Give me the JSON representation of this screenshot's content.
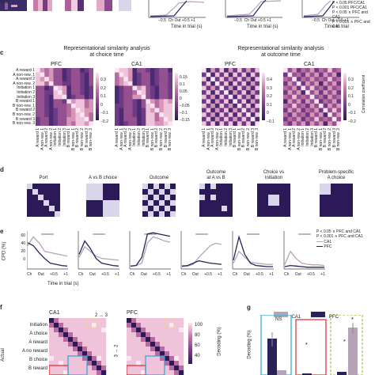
{
  "top": {
    "xlabel": "Time in trial",
    "xunit": "(s)",
    "ticks": [
      "−0.5",
      "Ch",
      "Out",
      "+0.5",
      "+1"
    ],
    "legend": [
      "P < 0.05 PFC/CA1",
      "P < 0.001 PFC/CA1",
      "P < 0.05 ∧ PFC and CA1",
      "P < 0.001 ∧ PFC and CA1"
    ]
  },
  "c": {
    "letter": "c",
    "title_choice": "Representational similarity analysis\nat choice time",
    "title_outcome": "Representational similarity analysis\nat outcome time",
    "panels": [
      "PFC",
      "CA1",
      "PFC",
      "CA1"
    ],
    "rowlabels": [
      "A reward 1",
      "A non-rew. 1",
      "A reward 2",
      "A non-rew. 2",
      "Initiation 1",
      "Initiation 2",
      "Initiation 3",
      "B reward 1",
      "B non-rew. 1",
      "B reward 2",
      "B non-rew. 2",
      "B reward 3",
      "B non-rew. 3"
    ],
    "collabels": [
      "A reward 1",
      "A non-rew. 1",
      "A reward 2",
      "A non-rew. 2",
      "Initiation 1",
      "Initiation 2",
      "Initiation 3",
      "B reward 1",
      "B non-rew. 1",
      "B reward 2",
      "B non-rew. 2",
      "B reward 3",
      "B non-rew. 3"
    ],
    "cbar_ticks": [
      [
        "0.3",
        "0.2",
        "0.1",
        "0",
        "−0.1",
        "−0.2"
      ],
      [
        "0.15",
        "0.1",
        "0.05",
        "0",
        "−0.05",
        "−0.1",
        "−0.15"
      ],
      [
        "0.4",
        "0.3",
        "0.2",
        "0.1",
        "0",
        "−0.1"
      ],
      [
        "0.3",
        "0.2",
        "0.1",
        "0",
        "−0.1",
        "−0.2"
      ]
    ],
    "cbar_label": "Correlation coefficient"
  },
  "d": {
    "letter": "d",
    "titles": [
      "Port",
      "A vs B choice",
      "Outcome",
      "Outcome\nat A vs B",
      "Choice vs\nInitiation",
      "Problem-specific\nA choice"
    ]
  },
  "e": {
    "letter": "e",
    "ylabel": "CPD (%)",
    "yticks": [
      "60",
      "40",
      "20",
      "0"
    ],
    "ylims": [
      [
        0,
        65
      ],
      [
        0,
        65
      ],
      [
        0,
        65
      ],
      [
        0,
        65
      ],
      [
        0,
        65
      ],
      [
        0,
        65
      ]
    ],
    "xticks": [
      "Ch",
      "Out",
      "+0.5",
      "+1"
    ],
    "xlabel": "Time in trial",
    "xunit": "(s)",
    "legend_sig": [
      "P < 0.05 ∧ PFC and CA1",
      "P < 0.001 ∧ PFC and CA1"
    ],
    "legend_series": [
      "CA1",
      "PFC"
    ],
    "colors": {
      "CA1": "#b7a3b8",
      "PFC": "#2b2159"
    }
  },
  "f": {
    "letter": "f",
    "panels": [
      "CA1",
      "PFC"
    ],
    "annotation": "2 → 3",
    "side_annotation": "3 → 2",
    "ylabel": "Actual",
    "rows": [
      "Initiation",
      "A choice",
      "A reward",
      "A no reward",
      "B choice",
      "B reward"
    ],
    "cbar_ticks": [
      "100",
      "80",
      "60",
      "40"
    ],
    "cbar_label": "Decoding (%)"
  },
  "g": {
    "letter": "g",
    "ylabel": "Decoding (%)",
    "legend": [
      "CA1",
      "PFC"
    ],
    "ns": "NS",
    "star": "*"
  }
}
